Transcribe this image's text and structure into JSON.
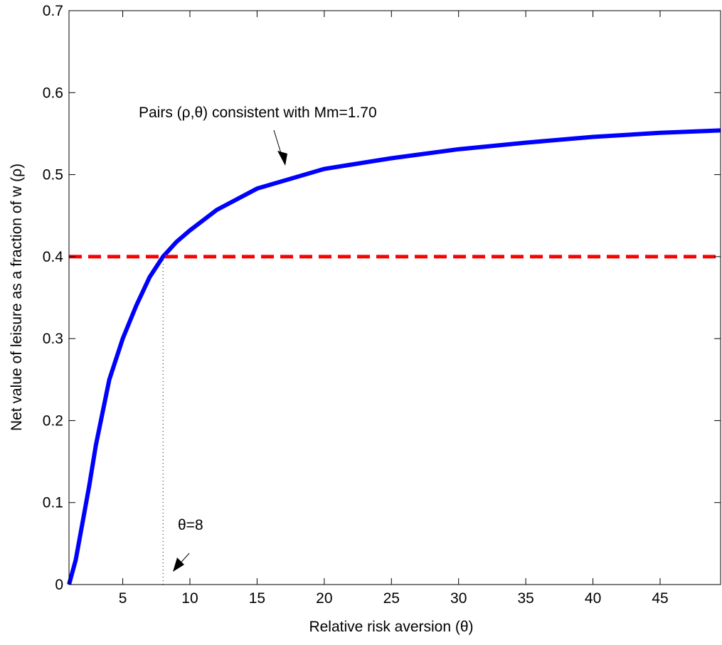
{
  "chart_data": {
    "type": "line",
    "x_label": "Relative risk aversion (θ)",
    "y_label": "Net value of leisure as a fraction of w   (ρ)",
    "series": [
      {
        "name": "Pairs (ρ,θ) consistent with Mm=1.70",
        "color": "#0000ff",
        "x": [
          1,
          1.5,
          2,
          2.5,
          3,
          3.5,
          4,
          5,
          6,
          7,
          8,
          9,
          10,
          12,
          15,
          20,
          25,
          30,
          35,
          40,
          45,
          49.5
        ],
        "values": [
          0,
          0.03,
          0.075,
          0.12,
          0.17,
          0.21,
          0.25,
          0.3,
          0.34,
          0.375,
          0.4,
          0.418,
          0.432,
          0.457,
          0.483,
          0.507,
          0.52,
          0.531,
          0.539,
          0.546,
          0.551,
          0.554
        ]
      }
    ],
    "hline": {
      "value": 0.4,
      "color": "#ff0000"
    },
    "vline": {
      "value": 8
    },
    "annotations": [
      {
        "text": "Pairs (ρ,θ) consistent with Mm=1.70"
      },
      {
        "text": "θ=8"
      }
    ],
    "xlim": [
      1,
      49.5
    ],
    "ylim": [
      0,
      0.7
    ],
    "xticks": [
      5,
      10,
      15,
      20,
      25,
      30,
      35,
      40,
      45
    ],
    "yticks": [
      0,
      0.1,
      0.2,
      0.3,
      0.4,
      0.5,
      0.6,
      0.7
    ]
  }
}
